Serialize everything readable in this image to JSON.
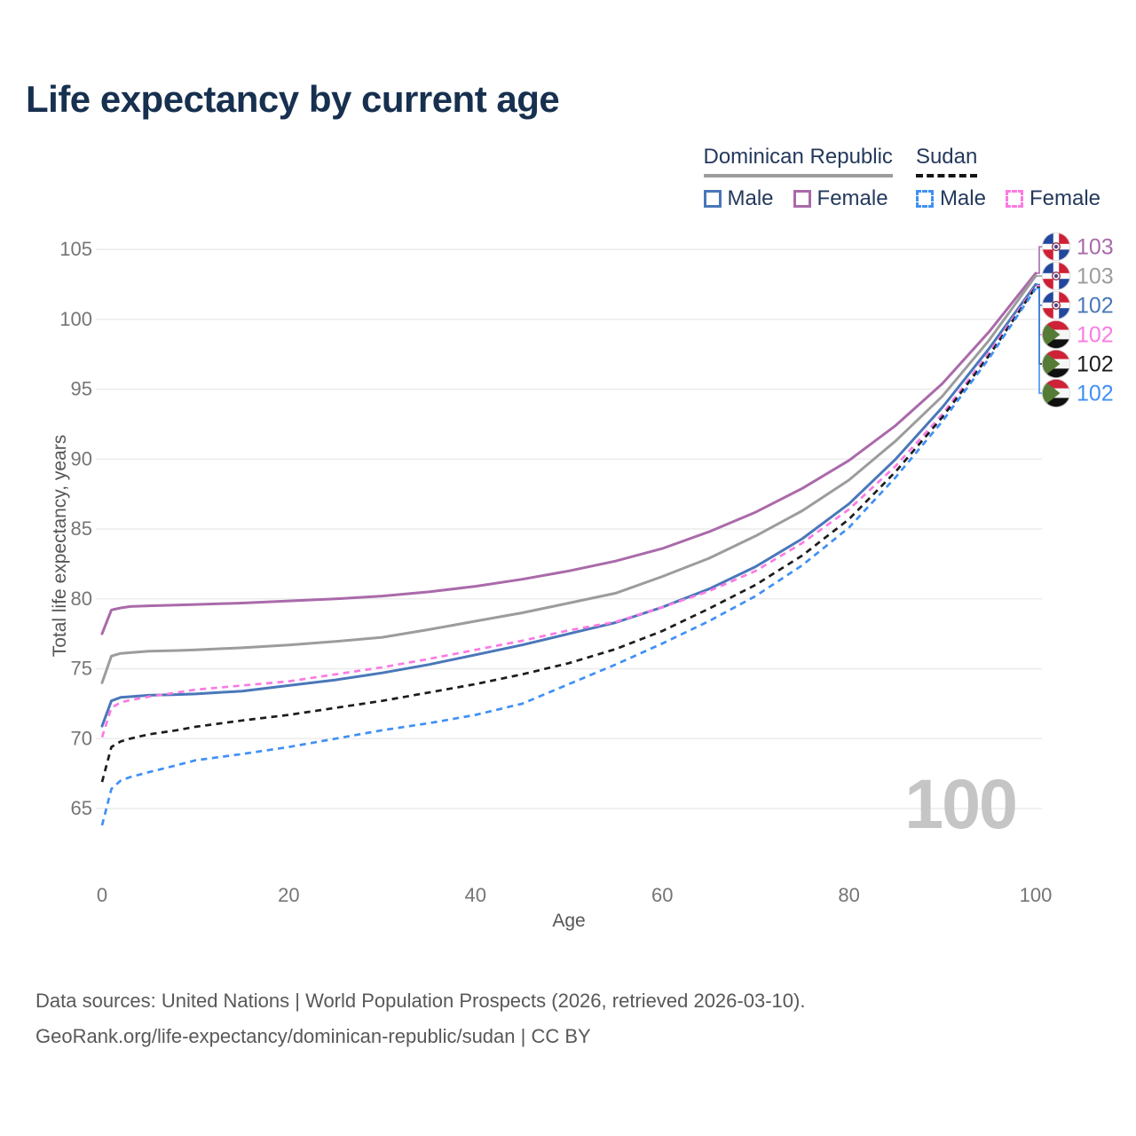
{
  "page": {
    "title": "Life expectancy by current age"
  },
  "legend": {
    "groups": [
      {
        "country": "Dominican Republic",
        "line_style": "solid",
        "items": [
          {
            "label": "Male",
            "dash": false
          },
          {
            "label": "Female",
            "dash": false
          }
        ]
      },
      {
        "country": "Sudan",
        "line_style": "dashed",
        "items": [
          {
            "label": "Male",
            "dash": true
          },
          {
            "label": "Female",
            "dash": true
          }
        ]
      }
    ]
  },
  "chart_data": {
    "type": "line",
    "title": "Life expectancy by current age",
    "xlabel": "Age",
    "ylabel": "Total life expectancy, years",
    "xlim": [
      0,
      100
    ],
    "ylim": [
      62,
      106
    ],
    "x_ticks": [
      0,
      20,
      40,
      60,
      80,
      100
    ],
    "y_ticks": [
      65,
      70,
      75,
      80,
      85,
      90,
      95,
      100,
      105
    ],
    "grid": true,
    "legend_position": "top-right",
    "watermark": "100",
    "ages": [
      0,
      1,
      2,
      3,
      5,
      8,
      10,
      15,
      20,
      25,
      30,
      35,
      40,
      45,
      50,
      55,
      60,
      65,
      70,
      75,
      80,
      85,
      90,
      95,
      100
    ],
    "series": [
      {
        "name": "Dominican Republic Female",
        "color": "#aa6aaa",
        "dash": false,
        "flag": "do",
        "end_label": "103",
        "values": [
          77.5,
          79.2,
          79.35,
          79.45,
          79.5,
          79.55,
          79.6,
          79.7,
          79.85,
          80.0,
          80.2,
          80.5,
          80.9,
          81.4,
          82.0,
          82.7,
          83.6,
          84.8,
          86.2,
          87.9,
          89.9,
          92.4,
          95.4,
          99.1,
          103.3
        ]
      },
      {
        "name": "Dominican Republic",
        "color": "#9c9c9c",
        "dash": false,
        "flag": "do",
        "end_label": "103",
        "values": [
          74.0,
          75.9,
          76.1,
          76.15,
          76.25,
          76.3,
          76.35,
          76.5,
          76.7,
          76.95,
          77.25,
          77.8,
          78.4,
          79.0,
          79.7,
          80.4,
          81.6,
          82.9,
          84.5,
          86.3,
          88.5,
          91.3,
          94.5,
          98.5,
          103.1
        ]
      },
      {
        "name": "Dominican Republic Male",
        "color": "#4a77b9",
        "dash": false,
        "flag": "do",
        "end_label": "102",
        "values": [
          70.9,
          72.7,
          72.95,
          73.0,
          73.1,
          73.15,
          73.2,
          73.4,
          73.8,
          74.2,
          74.7,
          75.3,
          76.0,
          76.7,
          77.5,
          78.3,
          79.4,
          80.7,
          82.3,
          84.3,
          86.8,
          90.0,
          93.7,
          97.9,
          102.5
        ]
      },
      {
        "name": "Sudan Female",
        "color": "#fb7ae3",
        "dash": true,
        "flag": "sd",
        "end_label": "102",
        "values": [
          70.1,
          72.2,
          72.6,
          72.75,
          73.0,
          73.3,
          73.5,
          73.8,
          74.1,
          74.6,
          75.1,
          75.7,
          76.35,
          77.0,
          77.75,
          78.35,
          79.4,
          80.55,
          82.0,
          84.0,
          86.4,
          89.5,
          93.2,
          97.6,
          102.4
        ]
      },
      {
        "name": "Sudan",
        "color": "#1c1c1c",
        "dash": true,
        "flag": "sd",
        "end_label": "102",
        "values": [
          66.9,
          69.4,
          69.8,
          70.0,
          70.3,
          70.6,
          70.85,
          71.3,
          71.7,
          72.2,
          72.7,
          73.3,
          73.9,
          74.6,
          75.4,
          76.4,
          77.7,
          79.3,
          81.0,
          83.1,
          85.7,
          89.1,
          93.0,
          97.4,
          102.3
        ]
      },
      {
        "name": "Sudan Male",
        "color": "#4090f5",
        "dash": true,
        "flag": "sd",
        "end_label": "102",
        "values": [
          63.8,
          66.4,
          67.0,
          67.25,
          67.6,
          68.1,
          68.45,
          68.9,
          69.4,
          70.0,
          70.6,
          71.1,
          71.7,
          72.5,
          73.9,
          75.3,
          76.8,
          78.4,
          80.2,
          82.4,
          85.1,
          88.7,
          92.7,
          97.2,
          102.2
        ]
      }
    ],
    "flag_colors": {
      "do": {
        "blue": "#23479c",
        "red": "#cf1f36",
        "white": "#ffffff"
      },
      "sd": {
        "red": "#cf2137",
        "white": "#f5f5f5",
        "black": "#101010",
        "green": "#567b36"
      }
    }
  },
  "footer": {
    "line1": "Data sources: United Nations | World Population Prospects (2026, retrieved 2026-03-10).",
    "line2": "GeoRank.org/life-expectancy/dominican-republic/sudan | CC BY"
  }
}
